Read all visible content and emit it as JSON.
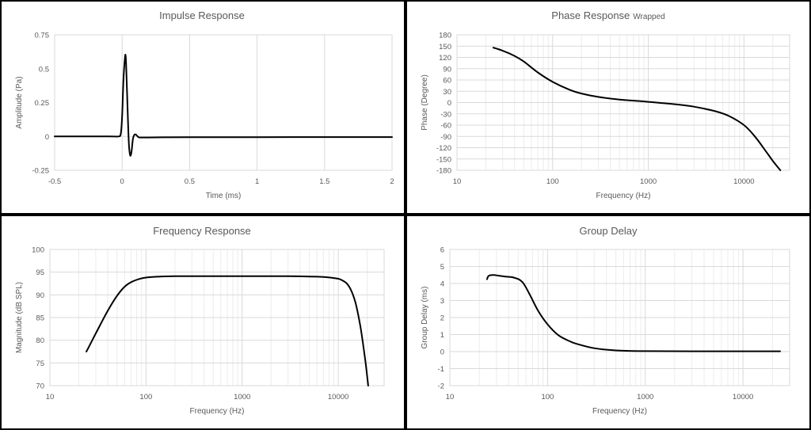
{
  "chart_data": [
    {
      "id": "impulse",
      "type": "line",
      "title": "Impulse Response",
      "title_suffix": "",
      "xlabel": "Time (ms)",
      "ylabel": "Amplitude (Pa)",
      "xscale": "linear",
      "xlim": [
        -0.5,
        2
      ],
      "ylim": [
        -0.25,
        0.75
      ],
      "xticks": [
        -0.5,
        0,
        0.5,
        1,
        1.5,
        2
      ],
      "xtick_labels": [
        "-0.5",
        "0",
        "0.5",
        "1",
        "1.5",
        "2"
      ],
      "yticks": [
        -0.25,
        0,
        0.25,
        0.5,
        0.75
      ],
      "ytick_labels": [
        "-0.25",
        "0",
        "0.25",
        "0.5",
        "0.75"
      ],
      "grid": "vertical",
      "series": [
        {
          "name": "impulse",
          "x": [
            -0.5,
            -0.1,
            -0.03,
            -0.01,
            0.0,
            0.01,
            0.02,
            0.025,
            0.03,
            0.04,
            0.05,
            0.06,
            0.07,
            0.08,
            0.09,
            0.1,
            0.11,
            0.12,
            0.13,
            0.15,
            0.18,
            0.2,
            0.3,
            0.5,
            1.0,
            1.5,
            2.0
          ],
          "y": [
            0.0,
            0.0,
            0.0,
            0.02,
            0.15,
            0.42,
            0.57,
            0.6,
            0.52,
            0.22,
            -0.05,
            -0.14,
            -0.11,
            -0.02,
            0.01,
            0.015,
            0.005,
            -0.005,
            -0.008,
            -0.008,
            -0.008,
            -0.008,
            -0.007,
            -0.006,
            -0.006,
            -0.005,
            -0.005
          ]
        }
      ]
    },
    {
      "id": "phase",
      "type": "line",
      "title": "Phase Response",
      "title_suffix": "Wrapped",
      "xlabel": "Frequency (Hz)",
      "ylabel": "Phase (Degree)",
      "xscale": "log",
      "xlim": [
        10,
        30000
      ],
      "ylim": [
        -180,
        180
      ],
      "xticks": [
        10,
        100,
        1000,
        10000
      ],
      "xtick_labels": [
        "10",
        "100",
        "1000",
        "10000"
      ],
      "yticks": [
        -180,
        -150,
        -120,
        -90,
        -60,
        -30,
        0,
        30,
        60,
        90,
        120,
        150,
        180
      ],
      "ytick_labels": [
        "-180",
        "-150",
        "-120",
        "-90",
        "-60",
        "-30",
        "0",
        "30",
        "60",
        "90",
        "120",
        "150",
        "180"
      ],
      "grid": "both",
      "series": [
        {
          "name": "phase",
          "x": [
            24,
            30,
            40,
            50,
            70,
            100,
            150,
            200,
            300,
            500,
            1000,
            2000,
            3000,
            5000,
            7000,
            10000,
            13000,
            17000,
            20000,
            24000
          ],
          "y": [
            146,
            138,
            124,
            109,
            80,
            55,
            34,
            24,
            15,
            8,
            2,
            -5,
            -11,
            -23,
            -36,
            -60,
            -90,
            -130,
            -155,
            -180
          ]
        }
      ]
    },
    {
      "id": "frequency",
      "type": "line",
      "title": "Frequency Response",
      "title_suffix": "",
      "xlabel": "Frequency (Hz)",
      "ylabel": "Magnitude (dB SPL)",
      "xscale": "log",
      "xlim": [
        10,
        30000
      ],
      "ylim": [
        70,
        100
      ],
      "xticks": [
        10,
        100,
        1000,
        10000
      ],
      "xtick_labels": [
        "10",
        "100",
        "1000",
        "10000"
      ],
      "yticks": [
        70,
        75,
        80,
        85,
        90,
        95,
        100
      ],
      "ytick_labels": [
        "70",
        "75",
        "80",
        "85",
        "90",
        "95",
        "100"
      ],
      "grid": "both",
      "series": [
        {
          "name": "magnitude",
          "x": [
            24,
            30,
            40,
            50,
            60,
            70,
            85,
            100,
            130,
            200,
            500,
            1000,
            3000,
            6000,
            9000,
            11000,
            13000,
            15000,
            17000,
            19000,
            20500
          ],
          "y": [
            77.5,
            81.5,
            86.5,
            89.8,
            91.8,
            92.8,
            93.5,
            93.8,
            94.0,
            94.1,
            94.1,
            94.1,
            94.1,
            94.0,
            93.7,
            93.2,
            91.8,
            88.5,
            83,
            76,
            70
          ]
        }
      ]
    },
    {
      "id": "group_delay",
      "type": "line",
      "title": "Group Delay",
      "title_suffix": "",
      "xlabel": "Frequency (Hz)",
      "ylabel": "Group Delay (ms)",
      "xscale": "log",
      "xlim": [
        10,
        30000
      ],
      "ylim": [
        -2,
        6
      ],
      "xticks": [
        10,
        100,
        1000,
        10000
      ],
      "xtick_labels": [
        "10",
        "100",
        "1000",
        "10000"
      ],
      "yticks": [
        -2,
        -1,
        0,
        1,
        2,
        3,
        4,
        5,
        6
      ],
      "ytick_labels": [
        "-2",
        "-1",
        "0",
        "1",
        "2",
        "3",
        "4",
        "5",
        "6"
      ],
      "grid": "both",
      "series": [
        {
          "name": "group delay",
          "x": [
            24,
            25,
            28,
            32,
            38,
            45,
            55,
            65,
            80,
            100,
            130,
            170,
            200,
            300,
            500,
            1000,
            3000,
            10000,
            24000
          ],
          "y": [
            4.25,
            4.45,
            4.5,
            4.45,
            4.4,
            4.35,
            4.1,
            3.4,
            2.4,
            1.6,
            0.95,
            0.6,
            0.45,
            0.2,
            0.07,
            0.03,
            0.02,
            0.02,
            0.02
          ]
        }
      ]
    }
  ]
}
